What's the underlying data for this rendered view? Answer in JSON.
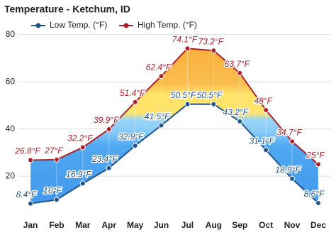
{
  "chart_data": {
    "type": "line",
    "title": "Temperature - Ketchum, ID",
    "categories": [
      "Jan",
      "Feb",
      "Mar",
      "Apr",
      "May",
      "Jun",
      "Jul",
      "Aug",
      "Sep",
      "Oct",
      "Nov",
      "Dec"
    ],
    "series": [
      {
        "name": "Low Temp. (°F)",
        "color": "#21558f",
        "values": [
          8.4,
          10,
          16.9,
          23.4,
          32.9,
          41.5,
          50.5,
          50.5,
          43.2,
          31.1,
          18.9,
          8.6
        ],
        "value_labels": [
          "8.4°F",
          "10°F",
          "16.9°F",
          "23.4°F",
          "32.9°F",
          "41.5°F",
          "50.5°F",
          "50.5°F",
          "43.2°F",
          "31.1°F",
          "18.9°F",
          "8.6°F"
        ]
      },
      {
        "name": "High Temp. (°F)",
        "color": "#b0202a",
        "values": [
          26.8,
          27,
          32.2,
          39.9,
          51.4,
          62.4,
          74.1,
          73.2,
          63.7,
          48,
          34.7,
          25
        ],
        "value_labels": [
          "26.8°F",
          "27°F",
          "32.2°F",
          "39.9°F",
          "51.4°F",
          "62.4°F",
          "74.1°F",
          "73.2°F",
          "63.7°F",
          "48°F",
          "34.7°F",
          "25°F"
        ]
      }
    ],
    "ylim": [
      5,
      85
    ],
    "yticks": [
      20,
      40,
      60,
      80
    ],
    "grid": true
  }
}
